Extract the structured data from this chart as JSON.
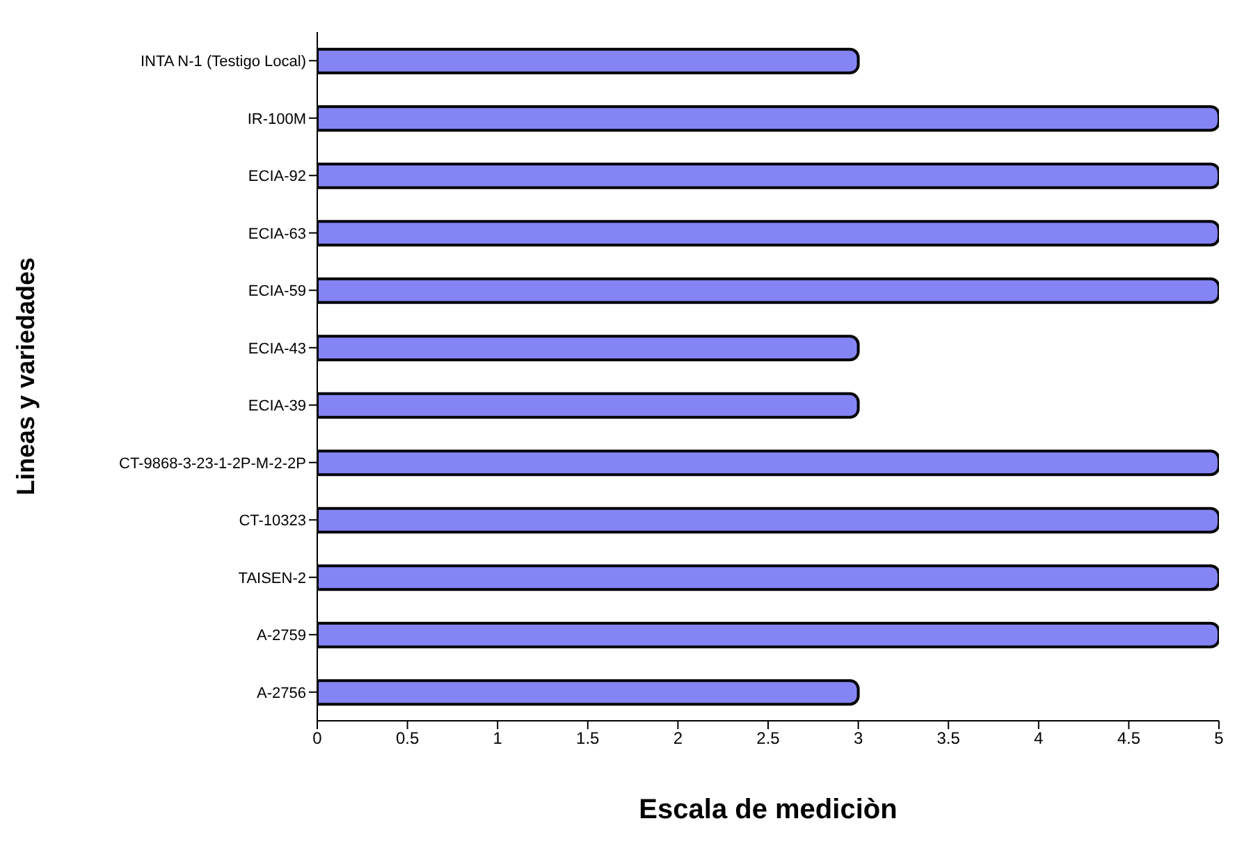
{
  "chart_data": {
    "type": "bar",
    "orientation": "horizontal",
    "xlabel": "Escala de mediciòn",
    "ylabel": "Lineas y variedades",
    "categories": [
      "INTA N-1 (Testigo Local)",
      "IR-100M",
      "ECIA-92",
      "ECIA-63",
      "ECIA-59",
      "ECIA-43",
      "ECIA-39",
      "CT-9868-3-23-1-2P-M-2-2P",
      "CT-10323",
      "TAISEN-2",
      "A-2759",
      "A-2756"
    ],
    "values": [
      3,
      5,
      5,
      5,
      5,
      3,
      3,
      5,
      5,
      5,
      5,
      3
    ],
    "color": "#8484f4",
    "xlim": [
      0,
      5
    ],
    "xticks": [
      0,
      0.5,
      1,
      1.5,
      2,
      2.5,
      3,
      3.5,
      4,
      4.5,
      5
    ],
    "grid": false
  }
}
